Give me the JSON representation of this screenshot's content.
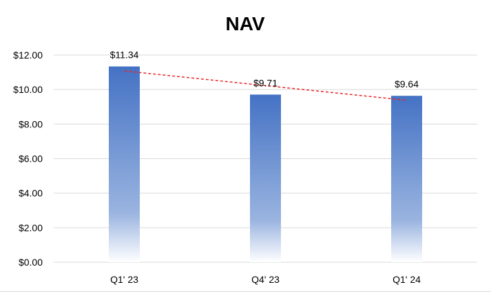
{
  "chart_data": {
    "type": "bar",
    "title": "NAV",
    "categories": [
      "Q1' 23",
      "Q4' 23",
      "Q1' 24"
    ],
    "values": [
      11.34,
      9.71,
      9.64
    ],
    "value_labels": [
      "$11.34",
      "$9.71",
      "$9.64"
    ],
    "xlabel": "",
    "ylabel": "",
    "ylim": [
      0,
      12
    ],
    "y_ticks": [
      0,
      2,
      4,
      6,
      8,
      10,
      12
    ],
    "y_tick_labels": [
      "$0.00",
      "$2.00",
      "$4.00",
      "$6.00",
      "$8.00",
      "$10.00",
      "$12.00"
    ],
    "grid": true,
    "legend": "none",
    "trendline": {
      "type": "linear",
      "style": "dashed",
      "color": "#e8262b"
    },
    "colors": {
      "bar_top": "#4472c4",
      "bar_bottom": "#ffffff",
      "grid": "#d9d9d9"
    }
  }
}
